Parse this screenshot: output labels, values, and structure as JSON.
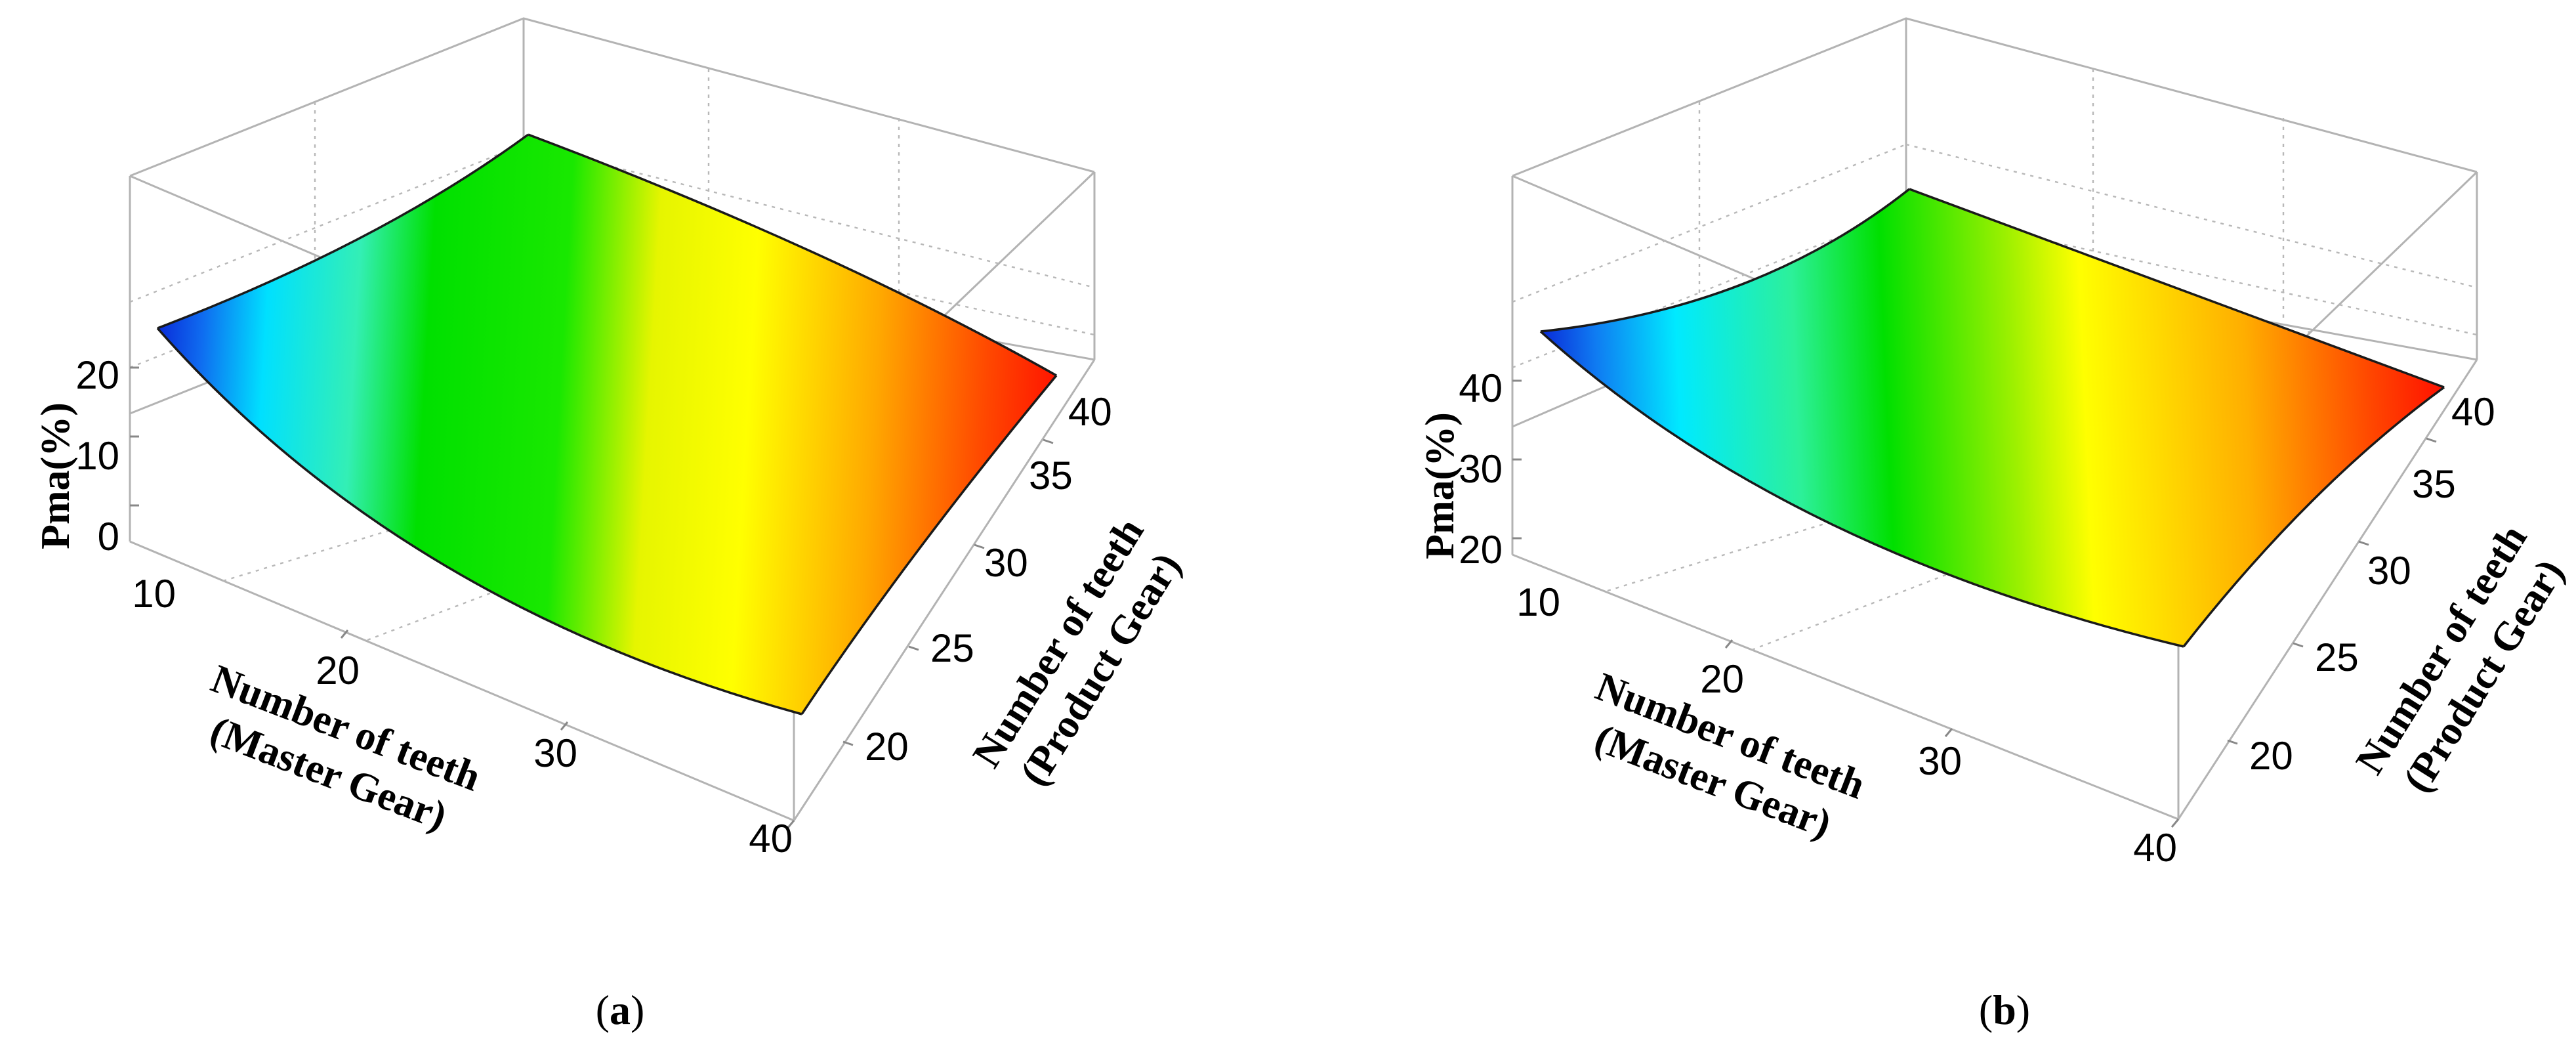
{
  "chart_data": [
    {
      "type": "surface",
      "panel_label": "a",
      "x": {
        "label_line1": "Number of teeth",
        "label_line2": "(Master Gear)",
        "range": [
          10,
          40
        ],
        "ticks": [
          "10",
          "20",
          "30",
          "40"
        ]
      },
      "y": {
        "label_line1": "Number of teeth",
        "label_line2": "(Product Gear)",
        "range": [
          17,
          40
        ],
        "ticks": [
          "20",
          "25",
          "30",
          "35",
          "40"
        ]
      },
      "z": {
        "label": "Pma(%)",
        "range": [
          -2,
          30
        ],
        "ticks": [
          "0",
          "10",
          "20"
        ]
      },
      "corners": [
        {
          "master": 10,
          "product": 17,
          "pma": 27
        },
        {
          "master": 40,
          "product": 17,
          "pma": 7
        },
        {
          "master": 10,
          "product": 40,
          "pma": 27
        },
        {
          "master": 40,
          "product": 40,
          "pma": 14
        }
      ],
      "grid": true
    },
    {
      "type": "surface",
      "panel_label": "b",
      "x": {
        "label_line1": "Number of teeth",
        "label_line2": "(Master Gear)",
        "range": [
          10,
          40
        ],
        "ticks": [
          "10",
          "20",
          "30",
          "40"
        ]
      },
      "y": {
        "label_line1": "Number of teeth",
        "label_line2": "(Product Gear)",
        "range": [
          17,
          40
        ],
        "ticks": [
          "20",
          "25",
          "30",
          "35",
          "40"
        ]
      },
      "z": {
        "label": "Pma(%)",
        "range": [
          17,
          52
        ],
        "ticks": [
          "20",
          "30",
          "40"
        ]
      },
      "corners": [
        {
          "master": 10,
          "product": 17,
          "pma": 44
        },
        {
          "master": 40,
          "product": 17,
          "pma": 28
        },
        {
          "master": 10,
          "product": 40,
          "pma": 44
        },
        {
          "master": 40,
          "product": 40,
          "pma": 38
        }
      ],
      "grid": true
    }
  ]
}
